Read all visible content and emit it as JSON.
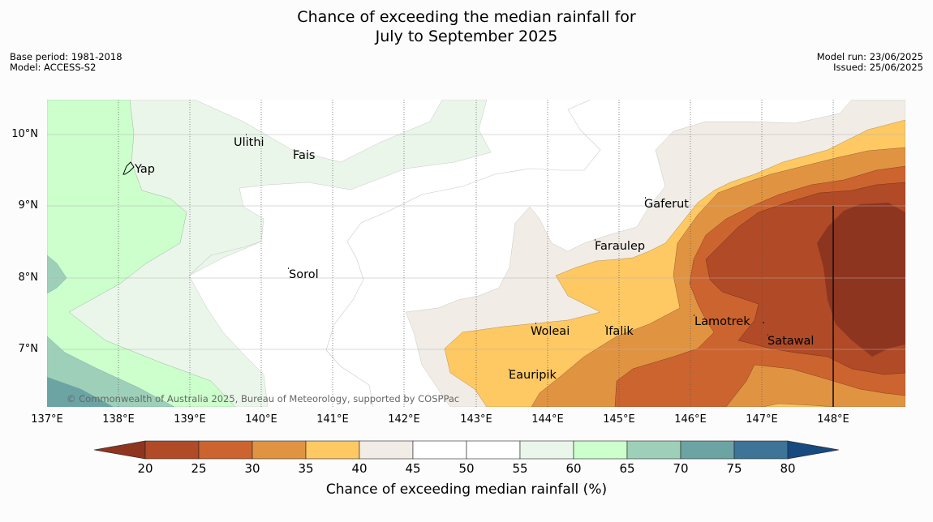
{
  "title_line1": "Chance of exceeding the median rainfall for",
  "title_line2": "July to September 2025",
  "meta": {
    "base_period": "Base period: 1981-2018",
    "model": "Model: ACCESS-S2",
    "model_run": "Model run: 23/06/2025",
    "issued": "Issued: 25/06/2025"
  },
  "copyright": "© Commonwealth of Australia 2025, Bureau of Meteorology, supported by COSPPac",
  "lat_labels": [
    "10°N",
    "9°N",
    "8°N",
    "7°N"
  ],
  "lon_labels": [
    "137°E",
    "138°E",
    "139°E",
    "140°E",
    "141°E",
    "142°E",
    "143°E",
    "144°E",
    "145°E",
    "146°E",
    "147°E",
    "148°E"
  ],
  "places": [
    "Yap",
    "Ulithi",
    "Fais",
    "Gaferut",
    "Faraulep",
    "Sorol",
    "Lamotrek",
    "Woleai",
    "Ifalik",
    "Satawal",
    "Eauripik"
  ],
  "colorbar": {
    "ticks": [
      "20",
      "25",
      "30",
      "35",
      "40",
      "45",
      "50",
      "55",
      "60",
      "65",
      "70",
      "75",
      "80"
    ],
    "colors": {
      "lt20": "#8e3520",
      "20-25": "#b04a27",
      "25-30": "#cc642f",
      "30-35": "#e09442",
      "35-40": "#fec863",
      "40-45": "#f1ece6",
      "45-50": "#ffffff",
      "50-55": "#ffffff",
      "55-60": "#ebf6eb",
      "60-65": "#ccffcc",
      "65-70": "#9ed0b9",
      "70-75": "#6ca4a4",
      "75-80": "#3d7497",
      "gt80": "#174a7e"
    },
    "title": "Chance of exceeding median rainfall (%)"
  }
}
